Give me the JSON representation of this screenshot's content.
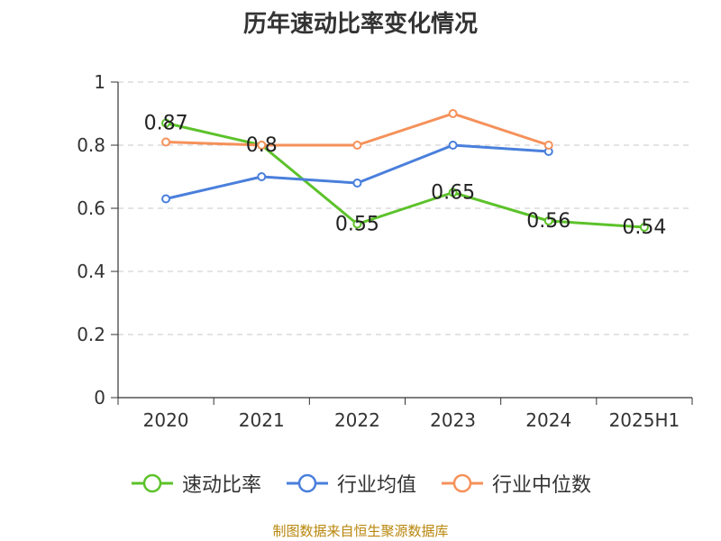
{
  "chart_data": {
    "type": "line",
    "title": "历年速动比率变化情况",
    "categories": [
      "2020",
      "2021",
      "2022",
      "2023",
      "2024",
      "2025H1"
    ],
    "ylim": [
      0,
      1
    ],
    "yticks": [
      0,
      0.2,
      0.4,
      0.6,
      0.8,
      1
    ],
    "ytick_labels": [
      "0",
      "0.2",
      "0.4",
      "0.6",
      "0.8",
      "1"
    ],
    "grid": true,
    "legend_position": "bottom",
    "series": [
      {
        "name": "速动比率",
        "color": "#5cc22a",
        "values": [
          0.87,
          0.8,
          0.55,
          0.65,
          0.56,
          0.54
        ],
        "labels": [
          "0.87",
          "0.8",
          "0.55",
          "0.65",
          "0.56",
          "0.54"
        ]
      },
      {
        "name": "行业均值",
        "color": "#4a7fdc",
        "values": [
          0.63,
          0.7,
          0.68,
          0.8,
          0.78,
          null
        ]
      },
      {
        "name": "行业中位数",
        "color": "#f5915a",
        "values": [
          0.81,
          0.8,
          0.8,
          0.9,
          0.8,
          null
        ]
      }
    ]
  },
  "source": "制图数据来自恒生聚源数据库"
}
